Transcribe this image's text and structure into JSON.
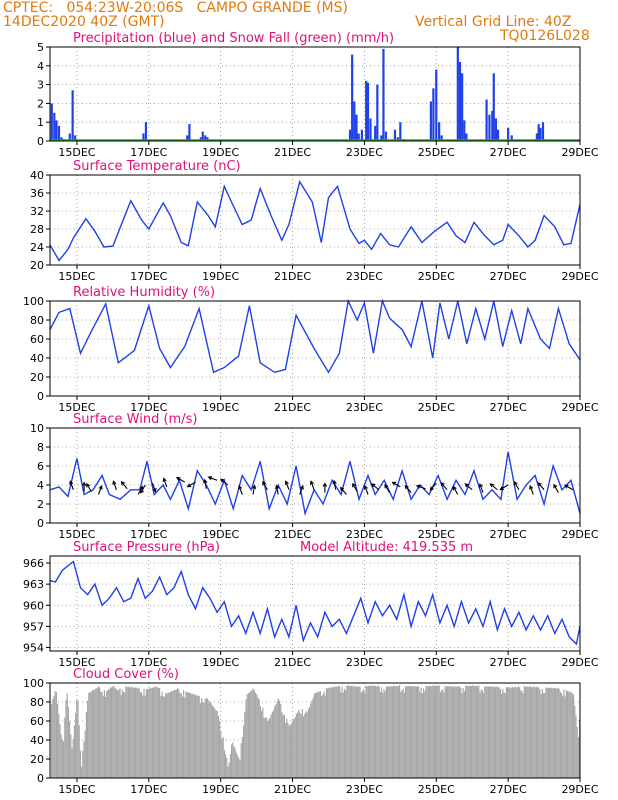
{
  "header": {
    "left_line1": "CPTEC:   054:23W-20:06S   CAMPO GRANDE (MS)",
    "left_line2": "14DEC2020 40Z (GMT)",
    "right_line1": "Vertical Grid Line: 40Z",
    "right_line2": "TQ0126L028"
  },
  "colors": {
    "header": "#e07a10",
    "panel_title": "#e0107a",
    "precip": "#2040e8",
    "snow": "#20b020",
    "line": "#2040e8",
    "cloud": "#a8a8a8",
    "wind_arrow": "#000000",
    "grid": "#909090"
  },
  "x_axis": {
    "ticks": [
      "15DEC",
      "17DEC",
      "19DEC",
      "21DEC",
      "23DEC",
      "25DEC",
      "27DEC",
      "29DEC"
    ],
    "tick_days": [
      15,
      17,
      19,
      21,
      23,
      25,
      27,
      29
    ],
    "range_days": [
      14.25,
      29.0
    ]
  },
  "chart_data": [
    {
      "type": "bar",
      "id": "precip",
      "title": "Precipitation (blue) and Snow Fall (green) (mm/h)",
      "ylim": [
        0,
        5
      ],
      "yticks": [
        "0",
        "1",
        "2",
        "3",
        "4",
        "5"
      ],
      "snow_value": 0,
      "x": [
        14.3,
        14.37,
        14.43,
        14.5,
        14.57,
        14.63,
        14.8,
        14.88,
        14.95,
        16.85,
        16.92,
        18.07,
        18.13,
        18.45,
        18.5,
        18.57,
        18.63,
        22.6,
        22.66,
        22.72,
        22.78,
        22.84,
        22.93,
        23.05,
        23.1,
        23.17,
        23.3,
        23.36,
        23.47,
        23.53,
        23.6,
        23.85,
        23.93,
        24.0,
        24.1,
        24.85,
        24.92,
        25.0,
        25.08,
        25.15,
        25.6,
        25.66,
        25.72,
        25.78,
        25.84,
        26.4,
        26.48,
        26.56,
        26.6,
        26.66,
        26.72,
        27.0,
        27.1,
        27.8,
        27.85,
        27.9,
        27.97
      ],
      "values": [
        2.0,
        1.5,
        1.1,
        0.8,
        0.2,
        0.1,
        0.4,
        2.7,
        0.3,
        0.4,
        1.0,
        0.3,
        0.9,
        0.2,
        0.5,
        0.3,
        0.2,
        0.6,
        4.6,
        2.1,
        1.4,
        0.4,
        0.6,
        3.2,
        3.1,
        1.2,
        0.8,
        3.0,
        0.3,
        4.9,
        0.5,
        0.6,
        0.2,
        1.0,
        0.1,
        2.1,
        2.8,
        3.8,
        1.0,
        0.3,
        5.0,
        4.2,
        3.6,
        1.1,
        0.4,
        2.2,
        1.4,
        1.6,
        3.6,
        1.2,
        0.6,
        0.7,
        0.3,
        0.4,
        0.9,
        0.7,
        1.0
      ]
    },
    {
      "type": "line",
      "id": "temp",
      "title": "Surface Temperature (nC)",
      "ylim": [
        20,
        40
      ],
      "yticks": [
        "20",
        "24",
        "28",
        "32",
        "36",
        "40"
      ],
      "x": [
        14.25,
        14.5,
        14.75,
        14.9,
        15.25,
        15.5,
        15.75,
        16.0,
        16.5,
        16.8,
        17.0,
        17.4,
        17.6,
        17.9,
        18.1,
        18.35,
        18.65,
        18.85,
        19.1,
        19.3,
        19.6,
        19.85,
        20.1,
        20.4,
        20.7,
        20.9,
        21.2,
        21.55,
        21.8,
        22.0,
        22.25,
        22.6,
        22.85,
        23.0,
        23.2,
        23.45,
        23.7,
        23.95,
        24.3,
        24.6,
        24.95,
        25.3,
        25.55,
        25.8,
        26.05,
        26.35,
        26.6,
        26.85,
        27.0,
        27.3,
        27.55,
        27.75,
        28.0,
        28.3,
        28.55,
        28.75,
        29.0
      ],
      "values": [
        24.5,
        21.0,
        23.5,
        26.0,
        30.3,
        27.5,
        24.0,
        24.2,
        34.3,
        30.0,
        28.0,
        33.8,
        31.0,
        25.0,
        24.3,
        34.0,
        31.0,
        28.5,
        37.5,
        34.0,
        29.0,
        30.0,
        37.0,
        31.0,
        25.5,
        29.0,
        38.5,
        34.0,
        25.0,
        35.0,
        37.5,
        28.0,
        24.8,
        25.5,
        23.5,
        27.0,
        24.5,
        24.0,
        28.5,
        25.0,
        27.5,
        29.5,
        26.5,
        25.0,
        29.5,
        26.5,
        24.5,
        25.5,
        29.0,
        26.5,
        24.0,
        25.5,
        31.0,
        28.5,
        24.5,
        24.8,
        33.5
      ]
    },
    {
      "type": "line",
      "id": "rh",
      "title": "Relative Humidity (%)",
      "ylim": [
        0,
        100
      ],
      "yticks": [
        "0",
        "20",
        "40",
        "60",
        "80",
        "100"
      ],
      "x": [
        14.25,
        14.5,
        14.8,
        15.1,
        15.4,
        15.8,
        16.15,
        16.6,
        17.0,
        17.3,
        17.6,
        18.0,
        18.4,
        18.8,
        19.1,
        19.5,
        19.8,
        20.1,
        20.5,
        20.8,
        21.1,
        21.6,
        22.0,
        22.3,
        22.55,
        22.8,
        23.0,
        23.25,
        23.5,
        23.7,
        23.9,
        24.05,
        24.3,
        24.6,
        24.9,
        25.1,
        25.35,
        25.6,
        25.85,
        26.1,
        26.35,
        26.6,
        26.85,
        27.1,
        27.35,
        27.55,
        27.9,
        28.15,
        28.4,
        28.7,
        29.0
      ],
      "values": [
        70,
        88,
        92,
        45,
        68,
        97,
        35,
        48,
        95,
        50,
        30,
        52,
        92,
        25,
        30,
        42,
        95,
        35,
        25,
        28,
        85,
        50,
        25,
        45,
        100,
        80,
        98,
        45,
        100,
        82,
        75,
        70,
        52,
        100,
        40,
        98,
        60,
        100,
        55,
        92,
        60,
        100,
        52,
        90,
        55,
        92,
        60,
        50,
        92,
        55,
        38
      ]
    },
    {
      "type": "line",
      "id": "wind",
      "title": "Surface Wind (m/s)",
      "ylim": [
        0,
        10
      ],
      "yticks": [
        "0",
        "2",
        "4",
        "6",
        "8",
        "10"
      ],
      "x": [
        14.25,
        14.5,
        14.75,
        15.0,
        15.2,
        15.45,
        15.7,
        15.9,
        16.2,
        16.5,
        16.75,
        16.95,
        17.15,
        17.4,
        17.6,
        17.85,
        18.1,
        18.35,
        18.6,
        18.85,
        19.1,
        19.35,
        19.6,
        19.85,
        20.1,
        20.35,
        20.6,
        20.85,
        21.1,
        21.35,
        21.6,
        21.85,
        22.1,
        22.35,
        22.6,
        22.85,
        23.1,
        23.3,
        23.55,
        23.8,
        24.05,
        24.3,
        24.55,
        24.8,
        25.05,
        25.3,
        25.55,
        25.8,
        26.05,
        26.3,
        26.55,
        26.8,
        27.0,
        27.25,
        27.5,
        27.75,
        28.0,
        28.25,
        28.5,
        28.75,
        29.0
      ],
      "values": [
        3.5,
        3.8,
        2.8,
        6.8,
        3.0,
        3.5,
        5.0,
        3.0,
        2.5,
        3.5,
        3.5,
        6.5,
        3.0,
        4.0,
        2.5,
        4.5,
        1.5,
        5.5,
        4.0,
        2.0,
        4.5,
        1.5,
        5.0,
        3.5,
        6.5,
        1.5,
        4.0,
        2.0,
        6.0,
        1.0,
        3.5,
        2.0,
        4.5,
        3.0,
        6.5,
        2.5,
        5.0,
        3.0,
        4.5,
        2.5,
        5.5,
        2.5,
        4.0,
        3.0,
        5.0,
        2.5,
        4.5,
        3.0,
        5.5,
        2.5,
        3.5,
        2.5,
        7.5,
        2.5,
        4.0,
        5.0,
        2.0,
        6.0,
        3.5,
        4.5,
        1.0
      ],
      "arrows": [
        {
          "x": 14.9,
          "v": 3.5,
          "dir": 200
        },
        {
          "x": 15.2,
          "v": 3.3,
          "dir": 180
        },
        {
          "x": 15.4,
          "v": 3.3,
          "dir": 210
        },
        {
          "x": 15.6,
          "v": 3.0,
          "dir": 160
        },
        {
          "x": 16.1,
          "v": 3.5,
          "dir": 200
        },
        {
          "x": 16.4,
          "v": 3.6,
          "dir": 220
        },
        {
          "x": 16.7,
          "v": 3.0,
          "dir": 150
        },
        {
          "x": 16.9,
          "v": 4.0,
          "dir": 330
        },
        {
          "x": 17.1,
          "v": 4.2,
          "dir": 20
        },
        {
          "x": 17.5,
          "v": 3.8,
          "dir": 200
        },
        {
          "x": 18.0,
          "v": 4.3,
          "dir": 240
        },
        {
          "x": 18.3,
          "v": 4.3,
          "dir": 300
        },
        {
          "x": 18.6,
          "v": 3.6,
          "dir": 190
        },
        {
          "x": 18.9,
          "v": 4.5,
          "dir": 250
        },
        {
          "x": 19.2,
          "v": 4.0,
          "dir": 230
        },
        {
          "x": 19.6,
          "v": 3.0,
          "dir": 200
        },
        {
          "x": 19.9,
          "v": 3.0,
          "dir": 170
        },
        {
          "x": 20.3,
          "v": 3.5,
          "dir": 210
        },
        {
          "x": 20.6,
          "v": 3.0,
          "dir": 190
        },
        {
          "x": 20.9,
          "v": 3.5,
          "dir": 200
        },
        {
          "x": 21.2,
          "v": 3.0,
          "dir": 160
        },
        {
          "x": 21.6,
          "v": 3.5,
          "dir": 200
        },
        {
          "x": 21.9,
          "v": 3.2,
          "dir": 180
        },
        {
          "x": 22.2,
          "v": 3.5,
          "dir": 190
        },
        {
          "x": 22.5,
          "v": 3.0,
          "dir": 220
        },
        {
          "x": 22.8,
          "v": 3.3,
          "dir": 210
        },
        {
          "x": 23.1,
          "v": 3.0,
          "dir": 200
        },
        {
          "x": 23.4,
          "v": 3.5,
          "dir": 230
        },
        {
          "x": 23.7,
          "v": 3.2,
          "dir": 210
        },
        {
          "x": 24.0,
          "v": 3.8,
          "dir": 240
        },
        {
          "x": 24.3,
          "v": 3.2,
          "dir": 220
        },
        {
          "x": 24.7,
          "v": 3.6,
          "dir": 250
        },
        {
          "x": 25.0,
          "v": 4.2,
          "dir": 320
        },
        {
          "x": 25.3,
          "v": 3.5,
          "dir": 220
        },
        {
          "x": 25.6,
          "v": 3.0,
          "dir": 210
        },
        {
          "x": 26.0,
          "v": 3.5,
          "dir": 230
        },
        {
          "x": 26.3,
          "v": 3.2,
          "dir": 200
        },
        {
          "x": 26.7,
          "v": 3.5,
          "dir": 230
        },
        {
          "x": 27.0,
          "v": 4.0,
          "dir": 300
        },
        {
          "x": 27.3,
          "v": 3.5,
          "dir": 210
        },
        {
          "x": 27.7,
          "v": 3.0,
          "dir": 200
        },
        {
          "x": 28.0,
          "v": 3.5,
          "dir": 220
        },
        {
          "x": 28.4,
          "v": 3.2,
          "dir": 210
        },
        {
          "x": 28.8,
          "v": 3.5,
          "dir": 240
        }
      ]
    },
    {
      "type": "line",
      "id": "pressure",
      "title": "Surface Pressure (hPa)",
      "annotation": "Model Altitude: 419.535 m",
      "ylim": [
        953.5,
        967
      ],
      "ytick_values": [
        954,
        957,
        960,
        963,
        966
      ],
      "yticks": [
        "954",
        "957",
        "960",
        "963",
        "966"
      ],
      "x": [
        14.25,
        14.4,
        14.6,
        14.9,
        15.1,
        15.3,
        15.5,
        15.7,
        15.9,
        16.1,
        16.3,
        16.5,
        16.7,
        16.9,
        17.1,
        17.3,
        17.5,
        17.7,
        17.9,
        18.1,
        18.3,
        18.5,
        18.7,
        18.9,
        19.1,
        19.3,
        19.5,
        19.7,
        19.9,
        20.1,
        20.3,
        20.5,
        20.7,
        20.9,
        21.1,
        21.3,
        21.5,
        21.7,
        21.9,
        22.1,
        22.3,
        22.5,
        22.7,
        22.9,
        23.1,
        23.3,
        23.5,
        23.7,
        23.9,
        24.1,
        24.3,
        24.5,
        24.7,
        24.9,
        25.1,
        25.3,
        25.5,
        25.7,
        25.9,
        26.1,
        26.3,
        26.5,
        26.7,
        26.9,
        27.1,
        27.3,
        27.5,
        27.7,
        27.9,
        28.1,
        28.3,
        28.5,
        28.7,
        28.9,
        29.0
      ],
      "values": [
        963.5,
        963.3,
        965.0,
        966.2,
        962.5,
        961.5,
        963.0,
        960.0,
        961.0,
        962.5,
        960.5,
        961.0,
        963.8,
        961.0,
        962.0,
        964.0,
        961.5,
        962.5,
        964.8,
        961.5,
        959.5,
        962.5,
        961.0,
        959.0,
        960.5,
        957.0,
        958.5,
        956.0,
        959.0,
        956.0,
        959.5,
        955.5,
        958.0,
        955.5,
        960.0,
        955.0,
        957.5,
        955.5,
        959.0,
        957.0,
        958.0,
        956.0,
        958.5,
        961.0,
        957.5,
        960.5,
        958.5,
        960.0,
        958.0,
        961.5,
        957.0,
        960.5,
        958.5,
        961.5,
        957.5,
        960.0,
        957.0,
        960.5,
        957.5,
        959.5,
        957.0,
        960.5,
        956.5,
        959.5,
        957.0,
        959.0,
        956.5,
        958.5,
        956.5,
        958.5,
        956.0,
        958.0,
        955.5,
        954.5,
        957.0
      ]
    },
    {
      "type": "bar",
      "id": "cloud",
      "title": "Cloud Cover (%)",
      "ylim": [
        0,
        100
      ],
      "yticks": [
        "0",
        "20",
        "40",
        "60",
        "80",
        "100"
      ],
      "profile_x": [
        14.25,
        14.4,
        14.5,
        14.6,
        14.7,
        14.85,
        15.0,
        15.1,
        15.3,
        15.6,
        15.8,
        16.0,
        16.1,
        16.3,
        16.6,
        16.9,
        17.2,
        17.5,
        17.8,
        18.0,
        18.3,
        18.6,
        18.9,
        19.1,
        19.2,
        19.3,
        19.5,
        19.7,
        19.9,
        20.1,
        20.3,
        20.6,
        20.9,
        21.2,
        21.4,
        21.6,
        21.9,
        22.2,
        22.5,
        22.8,
        23.2,
        23.6,
        24.0,
        24.5,
        25.0,
        25.5,
        26.0,
        26.5,
        27.0,
        27.5,
        28.0,
        28.4,
        28.6,
        28.8,
        28.95,
        29.0
      ],
      "profile_v": [
        75,
        95,
        60,
        40,
        95,
        30,
        92,
        15,
        90,
        97,
        92,
        98,
        93,
        97,
        96,
        94,
        97,
        90,
        95,
        92,
        88,
        85,
        70,
        35,
        10,
        40,
        20,
        88,
        95,
        80,
        60,
        85,
        55,
        75,
        70,
        90,
        95,
        97,
        98,
        97,
        98,
        97,
        98,
        97,
        98,
        97,
        98,
        97,
        96,
        97,
        96,
        95,
        93,
        90,
        40,
        95
      ]
    }
  ]
}
